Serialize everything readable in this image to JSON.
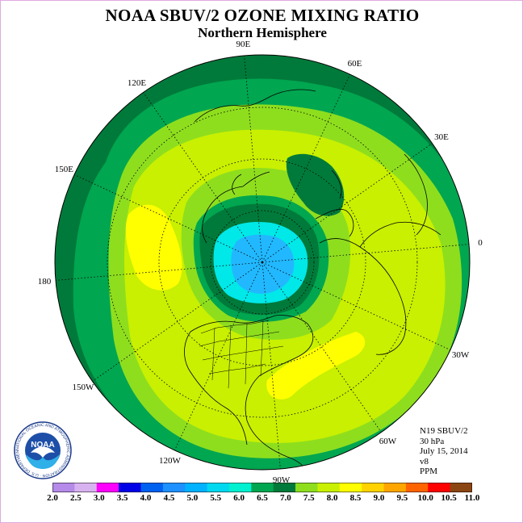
{
  "title": "NOAA SBUV/2 OZONE MIXING RATIO",
  "subtitle": "Northern Hemisphere",
  "longitude_labels": [
    {
      "text": "90E",
      "deg": 90
    },
    {
      "text": "60E",
      "deg": 60
    },
    {
      "text": "30E",
      "deg": 30
    },
    {
      "text": "0",
      "deg": 0
    },
    {
      "text": "30W",
      "deg": -30
    },
    {
      "text": "60W",
      "deg": -60
    },
    {
      "text": "90W",
      "deg": -90
    },
    {
      "text": "120W",
      "deg": -120
    },
    {
      "text": "150W",
      "deg": -150
    },
    {
      "text": "180",
      "deg": 180
    },
    {
      "text": "150E",
      "deg": 150
    },
    {
      "text": "120E",
      "deg": 120
    }
  ],
  "info": {
    "satellite": "N19 SBUV/2",
    "level": "30 hPa",
    "date": "July 15, 2014",
    "version": "v8",
    "units": "PPM"
  },
  "colorbar": {
    "labels": [
      "2.0",
      "2.5",
      "3.0",
      "3.5",
      "4.0",
      "4.5",
      "5.0",
      "5.5",
      "6.0",
      "6.5",
      "7.0",
      "7.5",
      "8.0",
      "8.5",
      "9.0",
      "9.5",
      "10.0",
      "10.5",
      "11.0"
    ],
    "colors": [
      "#b58ae8",
      "#d8b2f0",
      "#ff00ff",
      "#0000e6",
      "#0060f0",
      "#1e90ff",
      "#00b2ff",
      "#00d8f0",
      "#00f0d0",
      "#00a650",
      "#007a3a",
      "#8ede1e",
      "#c8f000",
      "#ffff00",
      "#ffd200",
      "#ffa500",
      "#ff6400",
      "#ff0000",
      "#8b4513"
    ]
  },
  "logo": {
    "text": "NOAA",
    "ring_text": "NATIONAL OCEANIC AND ATMOSPHERIC ADMINISTRATION · U.S. DEPARTMENT OF COMMERCE"
  },
  "colors": {
    "dark_green": "#007a3a",
    "green": "#00a650",
    "lime": "#8ede1e",
    "yellow_green": "#c8f000",
    "yellow": "#ffff00",
    "cyan": "#00e8e8",
    "light_blue": "#22b8ff"
  }
}
